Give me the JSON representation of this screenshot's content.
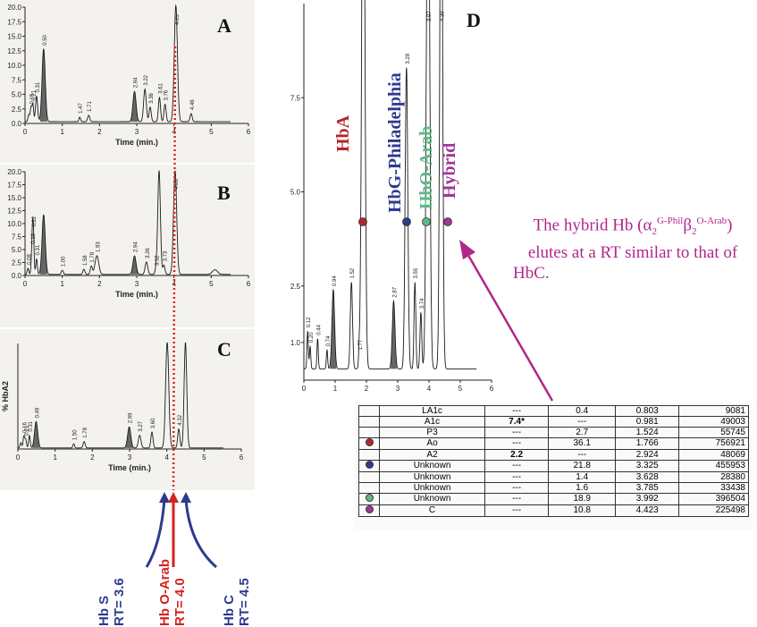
{
  "panels": {
    "A": {
      "label": "A",
      "xlabel": "Time (min.)"
    },
    "B": {
      "label": "B",
      "xlabel": "Time (min.)"
    },
    "C": {
      "label": "C",
      "xlabel": "Time (min.)",
      "ylabel": "% HbA2"
    },
    "D": {
      "label": "D"
    }
  },
  "chart_data": [
    {
      "type": "line",
      "name": "A",
      "xlabel": "Time (min.)",
      "xlim": [
        0,
        6
      ],
      "ylim": [
        0,
        20
      ],
      "xticks": [
        0,
        1,
        2,
        3,
        4,
        5,
        6
      ],
      "yticks": [
        "0.0",
        "2.5",
        "5.0",
        "7.5",
        "10.0",
        "12.5",
        "15.0",
        "17.5",
        "20.0"
      ],
      "peaks": [
        {
          "rt": 0.1,
          "h": 1.2,
          "w": 0.03,
          "lbl": ""
        },
        {
          "rt": 0.16,
          "h": 2.4,
          "w": 0.03,
          "lbl": "0.16"
        },
        {
          "rt": 0.21,
          "h": 3.0,
          "w": 0.03,
          "lbl": "0.21"
        },
        {
          "rt": 0.31,
          "h": 4.4,
          "w": 0.04,
          "lbl": "0.31"
        },
        {
          "rt": 0.5,
          "h": 12.5,
          "w": 0.06,
          "lbl": "0.50"
        },
        {
          "rt": 1.47,
          "h": 0.8,
          "w": 0.03,
          "lbl": "1.47"
        },
        {
          "rt": 1.71,
          "h": 1.1,
          "w": 0.04,
          "lbl": "1.71"
        },
        {
          "rt": 2.94,
          "h": 5.2,
          "w": 0.06,
          "lbl": "2.94"
        },
        {
          "rt": 3.22,
          "h": 5.6,
          "w": 0.05,
          "lbl": "3.22"
        },
        {
          "rt": 3.36,
          "h": 2.5,
          "w": 0.04,
          "lbl": "3.36"
        },
        {
          "rt": 3.61,
          "h": 4.2,
          "w": 0.04,
          "lbl": "3.61"
        },
        {
          "rt": 3.76,
          "h": 3.0,
          "w": 0.04,
          "lbl": "3.76"
        },
        {
          "rt": 4.05,
          "h": 20.0,
          "w": 0.06,
          "lbl": "4.05"
        },
        {
          "rt": 4.46,
          "h": 1.4,
          "w": 0.04,
          "lbl": "4.46"
        }
      ]
    },
    {
      "type": "line",
      "name": "B",
      "xlabel": "Time (min.)",
      "xlim": [
        0,
        6
      ],
      "ylim": [
        0,
        20
      ],
      "xticks": [
        0,
        1,
        2,
        3,
        4,
        5,
        6
      ],
      "yticks": [
        "0.0",
        "2.5",
        "5.0",
        "7.5",
        "10.0",
        "12.5",
        "15.0",
        "17.5",
        "20.0"
      ],
      "peaks": [
        {
          "rt": 0.08,
          "h": 1.2,
          "w": 0.03,
          "lbl": "0.08"
        },
        {
          "rt": 0.19,
          "h": 5.2,
          "w": 0.03,
          "lbl": "0.19"
        },
        {
          "rt": 0.22,
          "h": 8.5,
          "w": 0.03,
          "lbl": "0.22"
        },
        {
          "rt": 0.31,
          "h": 3.0,
          "w": 0.03,
          "lbl": "0.31"
        },
        {
          "rt": 0.5,
          "h": 11.5,
          "w": 0.06,
          "lbl": ""
        },
        {
          "rt": 1.0,
          "h": 0.8,
          "w": 0.04,
          "lbl": "1.00"
        },
        {
          "rt": 1.58,
          "h": 1.0,
          "w": 0.04,
          "lbl": "1.58"
        },
        {
          "rt": 1.78,
          "h": 1.6,
          "w": 0.04,
          "lbl": "1.78"
        },
        {
          "rt": 1.93,
          "h": 3.6,
          "w": 0.07,
          "lbl": "1.93"
        },
        {
          "rt": 2.94,
          "h": 3.6,
          "w": 0.06,
          "lbl": "2.94"
        },
        {
          "rt": 3.26,
          "h": 2.4,
          "w": 0.05,
          "lbl": "3.26"
        },
        {
          "rt": 3.52,
          "h": 1.0,
          "w": 0.04,
          "lbl": "3.52"
        },
        {
          "rt": 3.6,
          "h": 20.0,
          "w": 0.05,
          "lbl": ""
        },
        {
          "rt": 3.73,
          "h": 1.8,
          "w": 0.04,
          "lbl": "3.73"
        },
        {
          "rt": 4.03,
          "h": 20.0,
          "w": 0.06,
          "lbl": "4.03"
        },
        {
          "rt": 5.1,
          "h": 0.9,
          "w": 0.1,
          "lbl": ""
        }
      ]
    },
    {
      "type": "line",
      "name": "C",
      "xlabel": "Time (min.)",
      "ylabel": "% HbA2",
      "xlim": [
        0,
        6
      ],
      "ylim": [
        0,
        10
      ],
      "xticks": [
        0,
        1,
        2,
        3,
        4,
        5,
        6
      ],
      "peaks": [
        {
          "rt": 0.08,
          "h": 0.5,
          "w": 0.03,
          "lbl": ""
        },
        {
          "rt": 0.16,
          "h": 1.1,
          "w": 0.03,
          "lbl": "0.16"
        },
        {
          "rt": 0.21,
          "h": 0.8,
          "w": 0.03,
          "lbl": "0.21"
        },
        {
          "rt": 0.31,
          "h": 1.2,
          "w": 0.03,
          "lbl": "0.31"
        },
        {
          "rt": 0.49,
          "h": 2.5,
          "w": 0.06,
          "lbl": "0.49"
        },
        {
          "rt": 1.5,
          "h": 0.4,
          "w": 0.03,
          "lbl": "1.50"
        },
        {
          "rt": 1.78,
          "h": 0.6,
          "w": 0.04,
          "lbl": "1.78"
        },
        {
          "rt": 2.99,
          "h": 2.0,
          "w": 0.06,
          "lbl": "2.99"
        },
        {
          "rt": 3.27,
          "h": 1.2,
          "w": 0.05,
          "lbl": "3.27"
        },
        {
          "rt": 3.6,
          "h": 1.5,
          "w": 0.04,
          "lbl": "3.60"
        },
        {
          "rt": 4.01,
          "h": 10.0,
          "w": 0.06,
          "lbl": ""
        },
        {
          "rt": 4.32,
          "h": 1.8,
          "w": 0.04,
          "lbl": "4.32"
        },
        {
          "rt": 4.5,
          "h": 10.0,
          "w": 0.05,
          "lbl": ""
        }
      ]
    },
    {
      "type": "line",
      "name": "D",
      "xlim": [
        0,
        6
      ],
      "ylim": [
        0,
        10
      ],
      "xticks": [
        0,
        1,
        2,
        3,
        4,
        5,
        6
      ],
      "yticks": [
        "1.0",
        "2.5",
        "5.0",
        "7.5"
      ],
      "peaks": [
        {
          "rt": 0.12,
          "h": 1.0,
          "w": 0.03,
          "lbl": "0.12"
        },
        {
          "rt": 0.2,
          "h": 0.6,
          "w": 0.03,
          "lbl": "0.20"
        },
        {
          "rt": 0.44,
          "h": 0.8,
          "w": 0.03,
          "lbl": "0.44"
        },
        {
          "rt": 0.74,
          "h": 0.5,
          "w": 0.03,
          "lbl": "0.74"
        },
        {
          "rt": 0.94,
          "h": 2.1,
          "w": 0.06,
          "lbl": "0.94"
        },
        {
          "rt": 1.52,
          "h": 2.3,
          "w": 0.05,
          "lbl": "1.52"
        },
        {
          "rt": 1.77,
          "h": 0.4,
          "w": 0.03,
          "lbl": "1.77"
        },
        {
          "rt": 1.9,
          "h": 16.0,
          "w": 0.07,
          "lbl": ""
        },
        {
          "rt": 2.87,
          "h": 1.8,
          "w": 0.06,
          "lbl": "2.87"
        },
        {
          "rt": 3.28,
          "h": 8.0,
          "w": 0.06,
          "lbl": "3.28"
        },
        {
          "rt": 3.55,
          "h": 2.3,
          "w": 0.04,
          "lbl": "3.55"
        },
        {
          "rt": 3.74,
          "h": 1.5,
          "w": 0.04,
          "lbl": "3.74"
        },
        {
          "rt": 3.97,
          "h": 16.0,
          "w": 0.07,
          "lbl": "3.97"
        },
        {
          "rt": 4.39,
          "h": 16.0,
          "w": 0.06,
          "lbl": "4.39"
        }
      ]
    }
  ],
  "d_labels": [
    {
      "text": "HbA",
      "color": "#b3262b"
    },
    {
      "text": "HbG-Philadelphia",
      "color": "#2e3a8f"
    },
    {
      "text": "HbO-Arab",
      "color": "#5db887"
    },
    {
      "text": "Hybrid",
      "color": "#a0359a"
    }
  ],
  "annotation": {
    "line1_a": "The hybrid Hb (α",
    "sub1": "2",
    "sup1": "G-Phil",
    "beta": "β",
    "sub2": "2",
    "sup2": "O-Arab",
    "line1_b": ")",
    "line2": "elutes at a RT similar to that of",
    "line3": "HbC."
  },
  "table": {
    "rows": [
      {
        "dot": "",
        "name": "LA1c",
        "c2": "---",
        "c3": "0.4",
        "c4": "0.803",
        "c5": "9081"
      },
      {
        "dot": "",
        "name": "A1c",
        "c2": "7.4*",
        "c3": "---",
        "c4": "0.981",
        "c5": "49003"
      },
      {
        "dot": "",
        "name": "P3",
        "c2": "---",
        "c3": "2.7",
        "c4": "1.524",
        "c5": "55745"
      },
      {
        "dot": "#b3262b",
        "name": "Ao",
        "c2": "---",
        "c3": "36.1",
        "c4": "1.766",
        "c5": "756921"
      },
      {
        "dot": "",
        "name": "A2",
        "c2": "2.2",
        "c3": "---",
        "c4": "2.924",
        "c5": "48069"
      },
      {
        "dot": "#2e3a8f",
        "name": "Unknown",
        "c2": "---",
        "c3": "21.8",
        "c4": "3.325",
        "c5": "455953"
      },
      {
        "dot": "",
        "name": "Unknown",
        "c2": "---",
        "c3": "1.4",
        "c4": "3.628",
        "c5": "28380"
      },
      {
        "dot": "",
        "name": "Unknown",
        "c2": "---",
        "c3": "1.6",
        "c4": "3.785",
        "c5": "33438"
      },
      {
        "dot": "#5db887",
        "name": "Unknown",
        "c2": "---",
        "c3": "18.9",
        "c4": "3.992",
        "c5": "396504"
      },
      {
        "dot": "#a0359a",
        "name": "C",
        "c2": "---",
        "c3": "10.8",
        "c4": "4.423",
        "c5": "225498"
      }
    ]
  },
  "bottom_labels": {
    "hbs": {
      "name": "Hb S",
      "rt": "RT= 3.6",
      "color": "#2e3a8f"
    },
    "hbo": {
      "name": "Hb O-Arab",
      "rt": "RT= 4.0",
      "color": "#d4231f"
    },
    "hbc": {
      "name": "Hb C",
      "rt": "RT= 4.5",
      "color": "#2e3a8f"
    }
  },
  "colors": {
    "red_dotted": "#e0201b",
    "blue": "#2e3a8f",
    "magenta": "#b0278a",
    "trace": "#1a1a1a"
  }
}
